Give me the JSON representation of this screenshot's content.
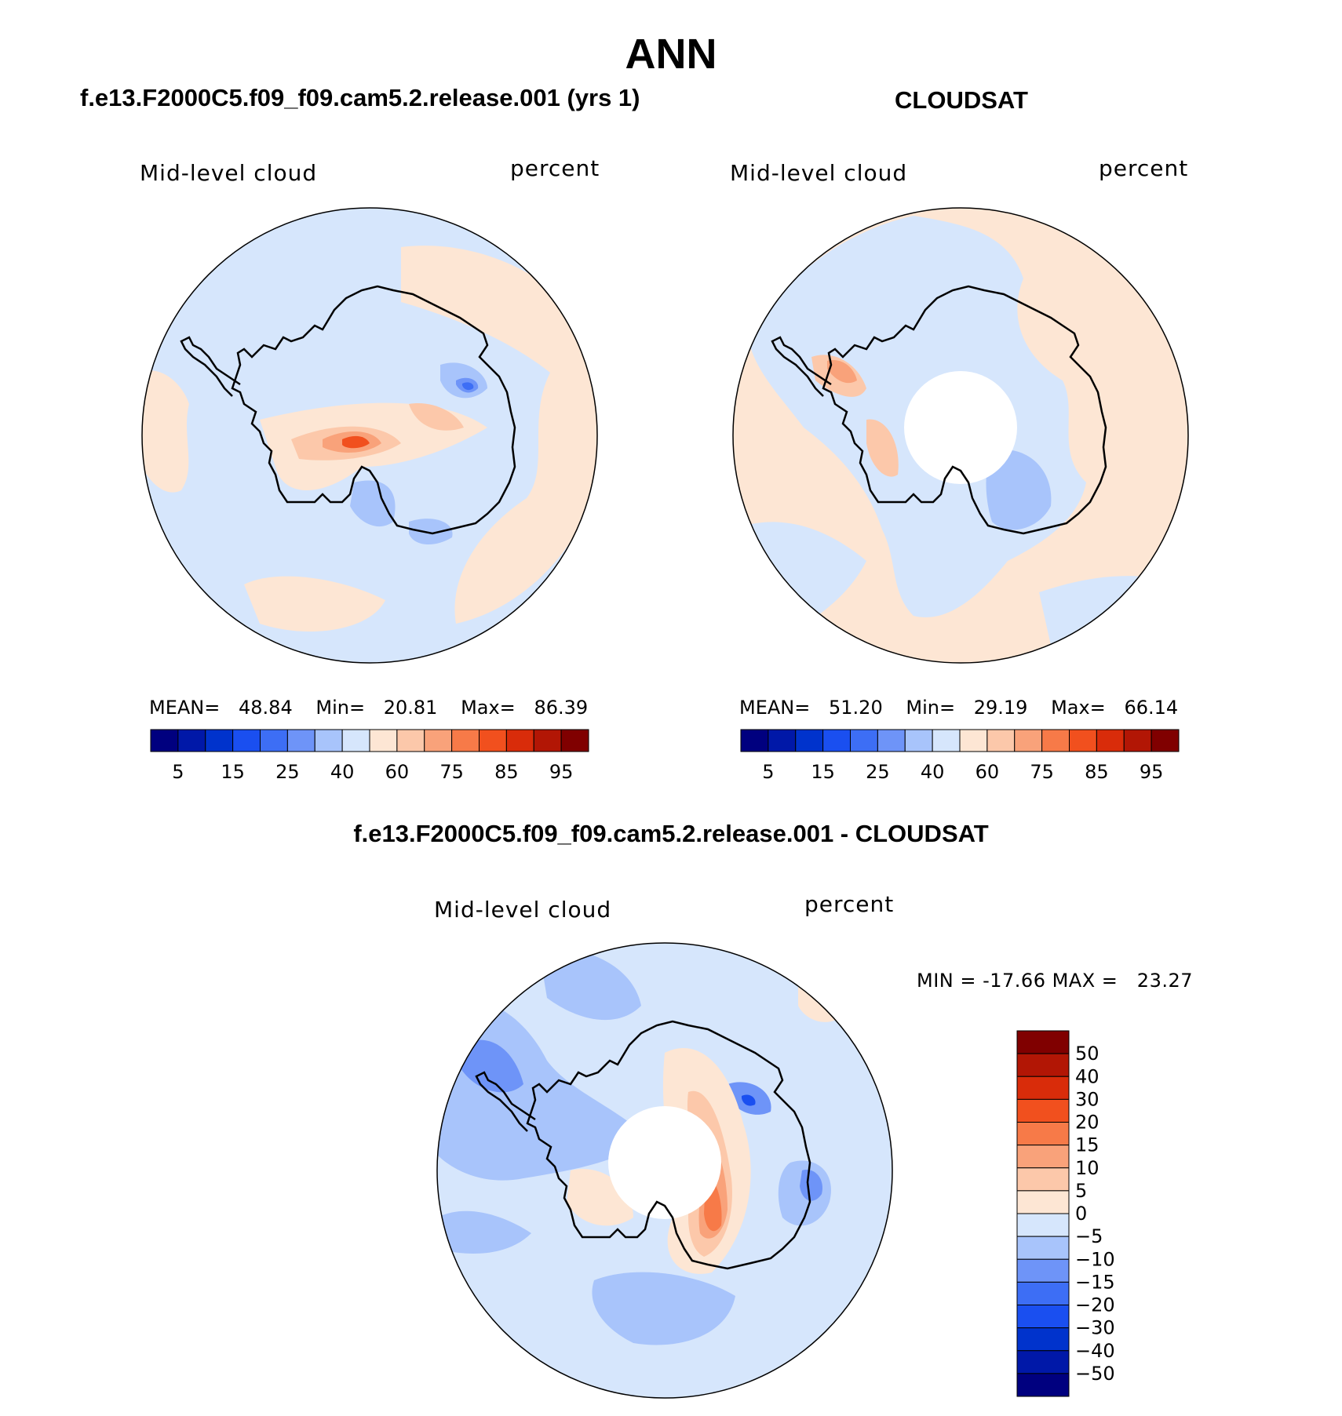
{
  "page": {
    "season": "ANN",
    "left_title": "f.e13.F2000C5.f09_f09.cam5.2.release.001 (yrs 1)",
    "right_title": "CLOUDSAT",
    "diff_title": "f.e13.F2000C5.f09_f09.cam5.2.release.001 - CLOUDSAT"
  },
  "panels": {
    "model": {
      "variable": "Mid-level cloud",
      "units": "percent",
      "stats": {
        "mean_label": "MEAN=",
        "mean_value": "48.84",
        "min_label": "Min=",
        "min_value": "20.81",
        "max_label": "Max=",
        "max_value": "86.39"
      }
    },
    "obs": {
      "variable": "Mid-level cloud",
      "units": "percent",
      "stats": {
        "mean_label": "MEAN=",
        "mean_value": "51.20",
        "min_label": "Min=",
        "min_value": "29.19",
        "max_label": "Max=",
        "max_value": "66.14"
      }
    },
    "diff": {
      "variable": "Mid-level cloud",
      "units": "percent",
      "minmax_text": "MIN = -17.66 MAX =   23.27"
    }
  },
  "colorbars": {
    "abs": {
      "colors": [
        "#00007f",
        "#0018a8",
        "#0033cc",
        "#1a4ff0",
        "#3d6ef5",
        "#6e94f8",
        "#a8c4fb",
        "#d6e6fc",
        "#fde6d4",
        "#fcc8aa",
        "#f9a27a",
        "#f77a48",
        "#f1501e",
        "#d92c0a",
        "#b21605",
        "#800000"
      ],
      "labels": [
        "5",
        "15",
        "25",
        "40",
        "60",
        "75",
        "85",
        "95"
      ]
    },
    "diff": {
      "colors": [
        "#800000",
        "#b21605",
        "#d92c0a",
        "#f1501e",
        "#f77a48",
        "#f9a27a",
        "#fcc8aa",
        "#fde6d4",
        "#d6e6fc",
        "#a8c4fb",
        "#6e94f8",
        "#3d6ef5",
        "#1a4ff0",
        "#0033cc",
        "#0018a8",
        "#00007f"
      ],
      "labels": [
        "50",
        "40",
        "30",
        "20",
        "15",
        "10",
        "5",
        "0",
        "-5",
        "-10",
        "-15",
        "-20",
        "-30",
        "-40",
        "-50"
      ]
    }
  },
  "map_colors": {
    "base_blue": "#d6e6fc",
    "base_peach": "#fde6d4",
    "light_blue": "#a8c4fb",
    "mid_blue": "#6e94f8",
    "deep_blue": "#3d6ef5",
    "light_orange": "#fcc8aa",
    "orange": "#f9a27a",
    "orange2": "#f77a48",
    "red": "#f1501e"
  }
}
